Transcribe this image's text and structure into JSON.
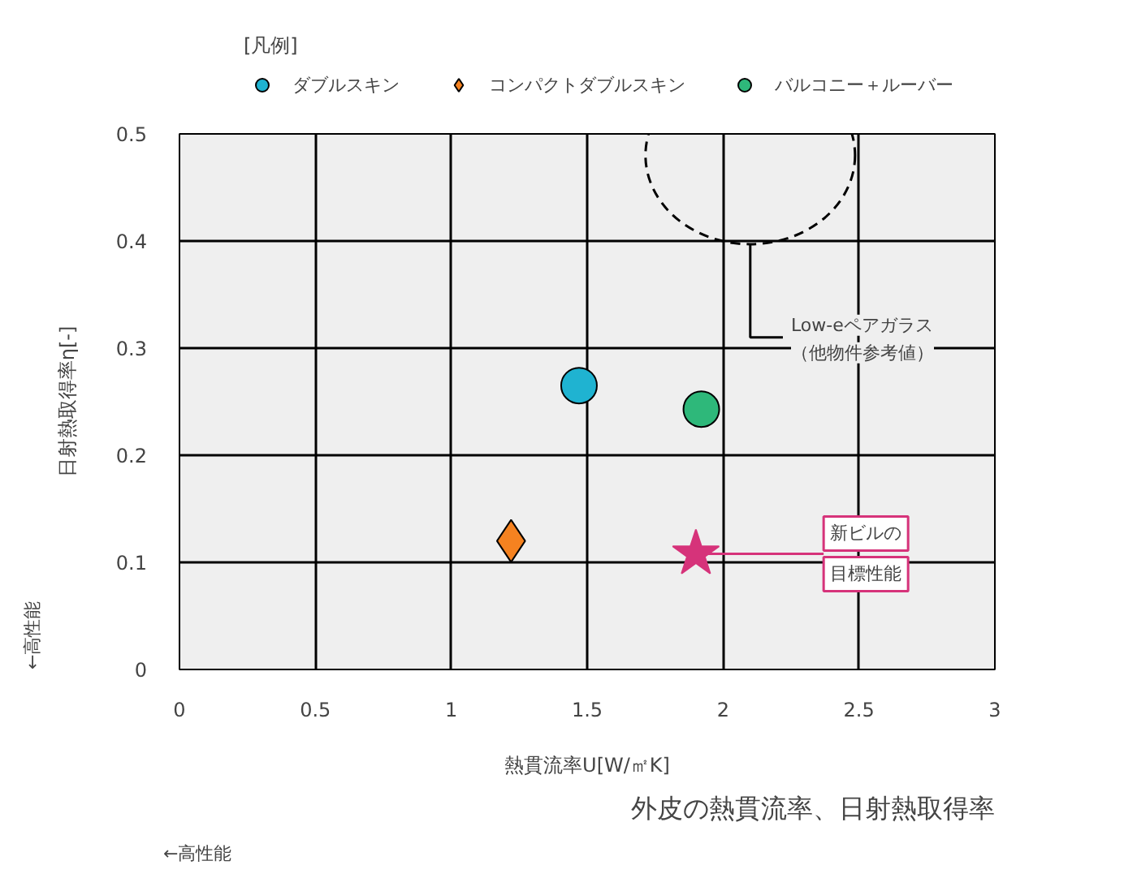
{
  "chart_data": {
    "type": "scatter",
    "title": "外皮の熱貫流率、日射熱取得率",
    "xlabel": "熱貫流率U[W/㎡K]",
    "ylabel": "日射熱取得率η[-]",
    "legend_title": "[凡例]",
    "legend": "top",
    "xlim": [
      0,
      3
    ],
    "ylim": [
      0,
      0.5
    ],
    "xticks": [
      0,
      0.5,
      1,
      1.5,
      2,
      2.5,
      3
    ],
    "yticks": [
      0,
      0.1,
      0.2,
      0.3,
      0.4,
      0.5
    ],
    "grid": true,
    "series": [
      {
        "name": "ダブルスキン",
        "color": "#1fb3d1",
        "marker": "circle",
        "x": [
          1.47
        ],
        "values": [
          0.265
        ]
      },
      {
        "name": "コンパクトダブルスキン",
        "color": "#f58220",
        "marker": "diamond",
        "x": [
          1.22
        ],
        "values": [
          0.12
        ]
      },
      {
        "name": "バルコニー＋ルーバー",
        "color": "#2eb87a",
        "marker": "circle",
        "x": [
          1.92
        ],
        "values": [
          0.243
        ]
      },
      {
        "color": "#d6337a",
        "marker": "star",
        "x": [
          1.9
        ],
        "values": [
          0.108
        ]
      }
    ],
    "annotations": [
      "Low-eペアガラス",
      "（他物件参考値）",
      {
        "text": "新ビルの",
        "x": 1.9,
        "y": 0.108
      },
      "目標性能",
      "←高性能",
      "←高性能"
    ]
  }
}
